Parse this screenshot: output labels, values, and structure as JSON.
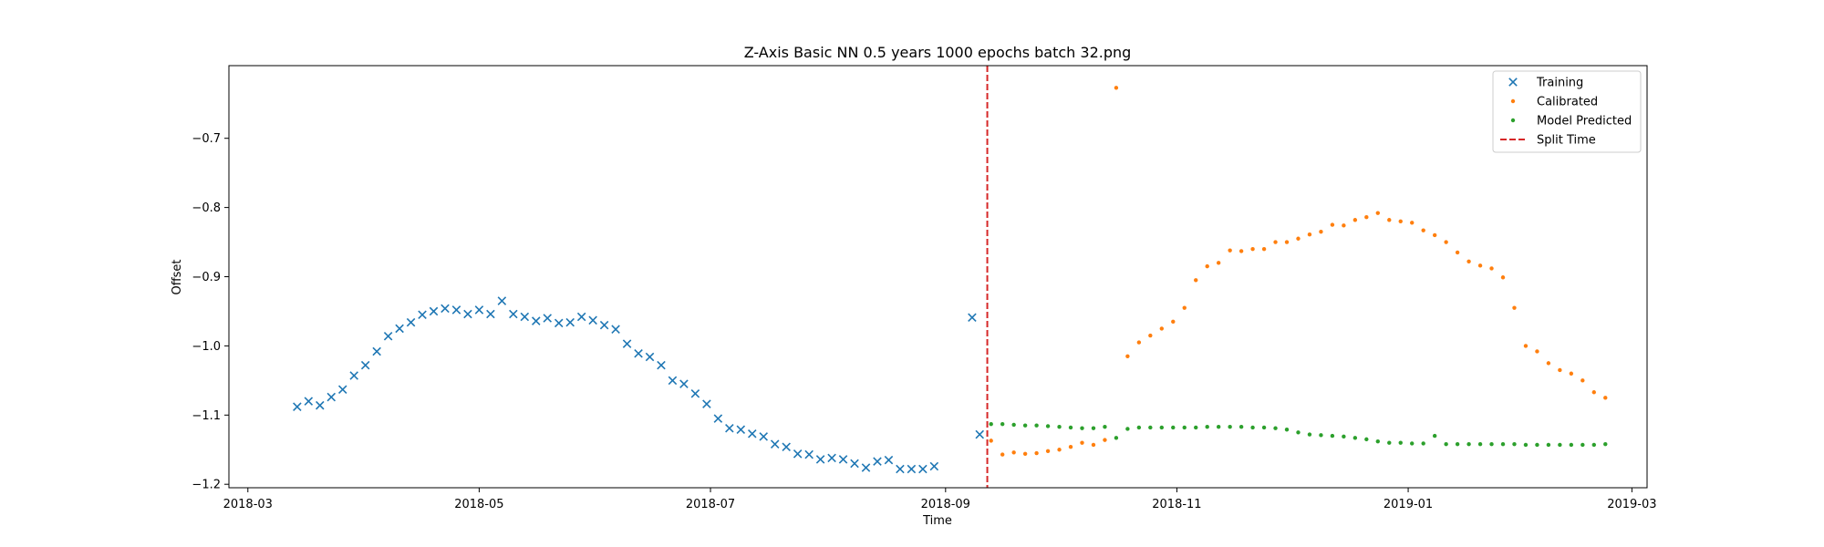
{
  "chart_data": {
    "type": "scatter",
    "title": "Z-Axis Basic NN 0.5 years 1000 epochs batch 32.png",
    "xlabel": "Time",
    "ylabel": "Offset",
    "xlim": [
      "2018-02-24",
      "2019-03-05"
    ],
    "ylim": [
      -1.205,
      -0.595
    ],
    "x_ticks": [
      "2018-03",
      "2018-05",
      "2018-07",
      "2018-09",
      "2018-11",
      "2019-01",
      "2019-03"
    ],
    "y_ticks": [
      "-0.7",
      "-0.8",
      "-0.9",
      "-1.0",
      "-1.1",
      "-1.2"
    ],
    "grid": false,
    "legend_position": "top-right",
    "colors": {
      "training": "#1f77b4",
      "calibrated": "#ff7f0e",
      "predicted": "#2ca02c",
      "split": "#d62728"
    },
    "split_time": {
      "label": "Split Time",
      "x": "2018-09-12"
    },
    "series": [
      {
        "name": "Training",
        "marker": "x",
        "x": [
          "2018-03-14",
          "2018-03-17",
          "2018-03-20",
          "2018-03-23",
          "2018-03-26",
          "2018-03-29",
          "2018-04-01",
          "2018-04-04",
          "2018-04-07",
          "2018-04-10",
          "2018-04-13",
          "2018-04-16",
          "2018-04-19",
          "2018-04-22",
          "2018-04-25",
          "2018-04-28",
          "2018-05-01",
          "2018-05-04",
          "2018-05-07",
          "2018-05-10",
          "2018-05-13",
          "2018-05-16",
          "2018-05-19",
          "2018-05-22",
          "2018-05-25",
          "2018-05-28",
          "2018-05-31",
          "2018-06-03",
          "2018-06-06",
          "2018-06-09",
          "2018-06-12",
          "2018-06-15",
          "2018-06-18",
          "2018-06-21",
          "2018-06-24",
          "2018-06-27",
          "2018-06-30",
          "2018-07-03",
          "2018-07-06",
          "2018-07-09",
          "2018-07-12",
          "2018-07-15",
          "2018-07-18",
          "2018-07-21",
          "2018-07-24",
          "2018-07-27",
          "2018-07-30",
          "2018-08-02",
          "2018-08-05",
          "2018-08-08",
          "2018-08-11",
          "2018-08-14",
          "2018-08-17",
          "2018-08-20",
          "2018-08-23",
          "2018-08-26",
          "2018-08-29",
          "2018-09-08",
          "2018-09-10"
        ],
        "values": [
          -1.088,
          -1.08,
          -1.086,
          -1.074,
          -1.063,
          -1.043,
          -1.028,
          -1.008,
          -0.986,
          -0.975,
          -0.966,
          -0.955,
          -0.95,
          -0.946,
          -0.948,
          -0.954,
          -0.948,
          -0.954,
          -0.935,
          -0.954,
          -0.958,
          -0.964,
          -0.96,
          -0.967,
          -0.966,
          -0.958,
          -0.963,
          -0.97,
          -0.976,
          -0.997,
          -1.011,
          -1.016,
          -1.028,
          -1.05,
          -1.055,
          -1.069,
          -1.084,
          -1.105,
          -1.119,
          -1.121,
          -1.127,
          -1.131,
          -1.142,
          -1.146,
          -1.156,
          -1.157,
          -1.164,
          -1.162,
          -1.164,
          -1.17,
          -1.176,
          -1.167,
          -1.165,
          -1.178,
          -1.178,
          -1.178,
          -1.174,
          -0.959,
          -1.128
        ]
      },
      {
        "name": "Calibrated",
        "marker": "dot",
        "x": [
          "2018-09-13",
          "2018-09-16",
          "2018-09-19",
          "2018-09-22",
          "2018-09-25",
          "2018-09-28",
          "2018-10-01",
          "2018-10-04",
          "2018-10-07",
          "2018-10-10",
          "2018-10-13",
          "2018-10-16",
          "2018-10-19",
          "2018-10-22",
          "2018-10-25",
          "2018-10-28",
          "2018-10-31",
          "2018-11-03",
          "2018-11-06",
          "2018-11-09",
          "2018-11-12",
          "2018-11-15",
          "2018-11-18",
          "2018-11-21",
          "2018-11-24",
          "2018-11-27",
          "2018-11-30",
          "2018-12-03",
          "2018-12-06",
          "2018-12-09",
          "2018-12-12",
          "2018-12-15",
          "2018-12-18",
          "2018-12-21",
          "2018-12-24",
          "2018-12-27",
          "2018-12-30",
          "2019-01-02",
          "2019-01-05",
          "2019-01-08",
          "2019-01-11",
          "2019-01-14",
          "2019-01-17",
          "2019-01-20",
          "2019-01-23",
          "2019-01-26",
          "2019-01-29",
          "2019-02-01",
          "2019-02-04",
          "2019-02-07",
          "2019-02-10",
          "2019-02-13",
          "2019-02-16",
          "2019-02-19",
          "2019-02-22"
        ],
        "values": [
          -1.137,
          -1.157,
          -1.154,
          -1.156,
          -1.155,
          -1.152,
          -1.15,
          -1.146,
          -1.14,
          -1.143,
          -1.136,
          -0.627,
          -1.015,
          -0.995,
          -0.985,
          -0.975,
          -0.965,
          -0.945,
          -0.905,
          -0.885,
          -0.88,
          -0.862,
          -0.863,
          -0.86,
          -0.86,
          -0.85,
          -0.85,
          -0.845,
          -0.839,
          -0.835,
          -0.825,
          -0.826,
          -0.818,
          -0.814,
          -0.808,
          -0.818,
          -0.82,
          -0.822,
          -0.833,
          -0.84,
          -0.85,
          -0.865,
          -0.878,
          -0.884,
          -0.888,
          -0.901,
          -0.945,
          -1.0,
          -1.008,
          -1.025,
          -1.035,
          -1.04,
          -1.05,
          -1.067,
          -1.075
        ]
      },
      {
        "name": "Model Predicted",
        "marker": "dot",
        "x": [
          "2018-09-13",
          "2018-09-16",
          "2018-09-19",
          "2018-09-22",
          "2018-09-25",
          "2018-09-28",
          "2018-10-01",
          "2018-10-04",
          "2018-10-07",
          "2018-10-10",
          "2018-10-13",
          "2018-10-16",
          "2018-10-19",
          "2018-10-22",
          "2018-10-25",
          "2018-10-28",
          "2018-10-31",
          "2018-11-03",
          "2018-11-06",
          "2018-11-09",
          "2018-11-12",
          "2018-11-15",
          "2018-11-18",
          "2018-11-21",
          "2018-11-24",
          "2018-11-27",
          "2018-11-30",
          "2018-12-03",
          "2018-12-06",
          "2018-12-09",
          "2018-12-12",
          "2018-12-15",
          "2018-12-18",
          "2018-12-21",
          "2018-12-24",
          "2018-12-27",
          "2018-12-30",
          "2019-01-02",
          "2019-01-05",
          "2019-01-08",
          "2019-01-11",
          "2019-01-14",
          "2019-01-17",
          "2019-01-20",
          "2019-01-23",
          "2019-01-26",
          "2019-01-29",
          "2019-02-01",
          "2019-02-04",
          "2019-02-07",
          "2019-02-10",
          "2019-02-13",
          "2019-02-16",
          "2019-02-19",
          "2019-02-22"
        ],
        "values": [
          -1.113,
          -1.113,
          -1.114,
          -1.115,
          -1.115,
          -1.116,
          -1.117,
          -1.118,
          -1.119,
          -1.119,
          -1.117,
          -1.133,
          -1.12,
          -1.118,
          -1.118,
          -1.118,
          -1.118,
          -1.118,
          -1.118,
          -1.117,
          -1.117,
          -1.117,
          -1.117,
          -1.118,
          -1.118,
          -1.119,
          -1.121,
          -1.125,
          -1.128,
          -1.129,
          -1.13,
          -1.131,
          -1.133,
          -1.135,
          -1.138,
          -1.14,
          -1.14,
          -1.141,
          -1.141,
          -1.13,
          -1.142,
          -1.142,
          -1.142,
          -1.142,
          -1.142,
          -1.142,
          -1.142,
          -1.143,
          -1.143,
          -1.143,
          -1.143,
          -1.143,
          -1.143,
          -1.143,
          -1.142
        ]
      }
    ]
  }
}
